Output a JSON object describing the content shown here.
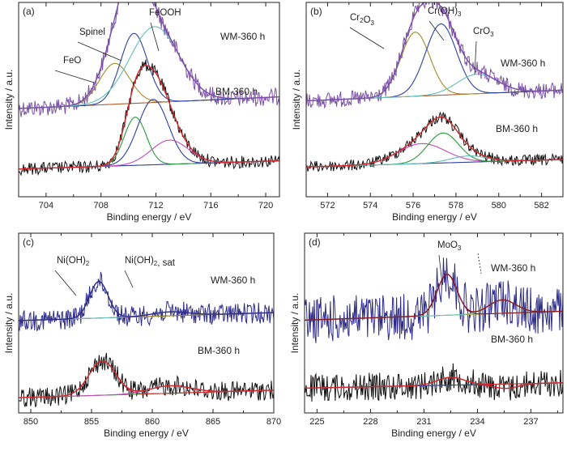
{
  "figure": {
    "panels": [
      {
        "letter": "(a)",
        "xlabel": "Binding energy  / eV",
        "ylabel": "Intensity  / a.u.",
        "xlim": [
          702,
          721
        ],
        "xticks": [
          "704",
          "708",
          "712",
          "716",
          "720"
        ],
        "xtick_values": [
          704,
          708,
          712,
          716,
          720
        ],
        "spectra": [
          {
            "label": "WM-360 h",
            "data_color": "#7b4fa8",
            "baseline_color": "#b25a2a",
            "fit_color": "#7b4fa8",
            "peaks": [
              {
                "name": "FeO",
                "label": "FeO",
                "center": 709.0,
                "height": 0.42,
                "fwhm": 2.6,
                "color": "#9b8f2e"
              },
              {
                "name": "Spinel",
                "label": "Spinel",
                "center": 710.4,
                "height": 0.72,
                "fwhm": 2.3,
                "color": "#2d3fa6"
              },
              {
                "name": "FeOOH",
                "label": "FeOOH",
                "center": 711.9,
                "height": 0.78,
                "fwhm": 4.2,
                "color": "#62c0b8"
              }
            ]
          },
          {
            "label": "BM-360 h",
            "data_color": "#111111",
            "baseline_color": "#2d3fa6",
            "fit_color": "#d6262c",
            "peaks": [
              {
                "name": "Fe2p-1",
                "label": "",
                "center": 710.5,
                "height": 0.7,
                "fwhm": 1.9,
                "color": "#2a9a3a"
              },
              {
                "name": "Fe2p-2",
                "label": "",
                "center": 711.8,
                "height": 0.95,
                "fwhm": 2.6,
                "color": "#2d3fa6"
              },
              {
                "name": "Fe2p-3",
                "label": "",
                "center": 713.0,
                "height": 0.35,
                "fwhm": 3.2,
                "color": "#c24bb8"
              }
            ]
          }
        ]
      },
      {
        "letter": "(b)",
        "xlabel": "Binding energy  / eV",
        "ylabel": "Intensity  / a.u.",
        "xlim": [
          571,
          583
        ],
        "xticks": [
          "572",
          "574",
          "576",
          "578",
          "580",
          "582"
        ],
        "xtick_values": [
          572,
          574,
          576,
          578,
          580,
          582
        ],
        "spectra": [
          {
            "label": "WM-360 h",
            "data_color": "#7b4fa8",
            "baseline_color": "#b25a2a",
            "fit_color": "#7b4fa8",
            "peaks": [
              {
                "name": "Cr2O3",
                "label": "Cr2O3",
                "center": 576.1,
                "height": 0.72,
                "fwhm": 1.6,
                "color": "#9b8f2e"
              },
              {
                "name": "Cr(OH)3",
                "label": "Cr(OH)3",
                "center": 577.3,
                "height": 0.8,
                "fwhm": 1.7,
                "color": "#2d3fa6"
              },
              {
                "name": "CrO3",
                "label": "CrO3",
                "center": 579.0,
                "height": 0.22,
                "fwhm": 2.2,
                "color": "#62c0b8"
              }
            ]
          },
          {
            "label": "BM-360 h",
            "data_color": "#111111",
            "baseline_color": "#2d3fa6",
            "fit_color": "#d6262c",
            "peaks": [
              {
                "name": "Cr2p-1",
                "label": "",
                "center": 576.4,
                "height": 0.32,
                "fwhm": 2.6,
                "color": "#c24bb8"
              },
              {
                "name": "Cr2p-2",
                "label": "",
                "center": 577.4,
                "height": 0.48,
                "fwhm": 1.7,
                "color": "#2a9a3a"
              },
              {
                "name": "Cr2p-3",
                "label": "",
                "center": 578.6,
                "height": 0.1,
                "fwhm": 2.0,
                "color": "#62c0b8"
              }
            ]
          }
        ]
      },
      {
        "letter": "(c)",
        "xlabel": "Binding energy  / eV",
        "ylabel": "Intensity  / a.u.",
        "xlim": [
          849,
          870
        ],
        "xticks": [
          "850",
          "855",
          "860",
          "865",
          "870"
        ],
        "xtick_values": [
          850,
          855,
          860,
          865,
          870
        ],
        "spectra": [
          {
            "label": "WM-360 h",
            "data_color": "#2d2a8a",
            "baseline_color": "#8a1a1a",
            "fit_color": "#2d2a8a",
            "peaks": [
              {
                "name": "Ni(OH)2",
                "label": "Ni(OH)2",
                "center": 855.6,
                "height": 0.55,
                "fwhm": 1.8,
                "color": "#9b8f2e"
              },
              {
                "name": "Ni(OH)2-sat",
                "label": "Ni(OH)2, sat",
                "center": 861.5,
                "height": 0.06,
                "fwhm": 3.5,
                "color": "#62c0b8"
              }
            ]
          },
          {
            "label": "BM-360 h",
            "data_color": "#111111",
            "baseline_color": "#2a9a3a",
            "fit_color": "#d6262c",
            "peaks": [
              {
                "name": "Ni2p-1",
                "label": "",
                "center": 855.9,
                "height": 0.55,
                "fwhm": 2.6,
                "color": "#d6262c"
              },
              {
                "name": "Ni2p-2",
                "label": "",
                "center": 861.5,
                "height": 0.12,
                "fwhm": 4.0,
                "color": "#c24bb8"
              }
            ]
          }
        ]
      },
      {
        "letter": "(d)",
        "xlabel": "Binding energy  / eV",
        "ylabel": "Intensity  / a.u.",
        "xlim": [
          224.3,
          238.8
        ],
        "xticks": [
          "225",
          "228",
          "231",
          "234",
          "237"
        ],
        "xtick_values": [
          225,
          228,
          231,
          234,
          237
        ],
        "spectra": [
          {
            "label": "WM-360 h",
            "data_color": "#2d2a8a",
            "baseline_color": "#b8a23a",
            "fit_color": "#8a1a1a",
            "peaks": [
              {
                "name": "MoO3",
                "label": "MoO3",
                "center": 232.3,
                "height": 0.55,
                "fwhm": 1.3,
                "color": "#8a1a1a"
              },
              {
                "name": "MoO3-b",
                "label": "",
                "center": 235.4,
                "height": 0.18,
                "fwhm": 1.8,
                "color": "#62c0b8"
              }
            ]
          },
          {
            "label": "BM-360 h",
            "data_color": "#111111",
            "baseline_color": "#2a9a3a",
            "fit_color": "#d6262c",
            "peaks": [
              {
                "name": "Mo3d-1",
                "label": "",
                "center": 232.5,
                "height": 0.18,
                "fwhm": 1.8,
                "color": "#d6262c"
              },
              {
                "name": "Mo3d-2",
                "label": "",
                "center": 235.6,
                "height": -0.1,
                "fwhm": 1.6,
                "color": "#2d3fa6"
              }
            ]
          }
        ]
      }
    ]
  },
  "chart_data": [
    {
      "type": "line",
      "panel": "(a)",
      "xlabel": "Binding energy  / eV",
      "ylabel": "Intensity  / a.u.",
      "xlim": [
        702,
        721
      ],
      "series": [
        {
          "name": "WM-360 h",
          "components": [
            "FeO",
            "Spinel",
            "FeOOH"
          ],
          "peak_centers": [
            709.0,
            710.4,
            711.9
          ]
        },
        {
          "name": "BM-360 h",
          "components": [
            "",
            "",
            ""
          ],
          "peak_centers": [
            710.5,
            711.8,
            713.0
          ]
        }
      ],
      "annotations": [
        "FeO",
        "Spinel",
        "FeOOH",
        "WM-360 h",
        "BM-360 h"
      ]
    },
    {
      "type": "line",
      "panel": "(b)",
      "xlabel": "Binding energy  / eV",
      "ylabel": "Intensity  / a.u.",
      "xlim": [
        571,
        583
      ],
      "series": [
        {
          "name": "WM-360 h",
          "components": [
            "Cr2O3",
            "Cr(OH)3",
            "CrO3"
          ],
          "peak_centers": [
            576.1,
            577.3,
            579.0
          ]
        },
        {
          "name": "BM-360 h",
          "components": [
            "",
            "",
            ""
          ],
          "peak_centers": [
            576.4,
            577.4,
            578.6
          ]
        }
      ],
      "annotations": [
        "Cr2O3",
        "Cr(OH)3",
        "CrO3",
        "WM-360 h",
        "BM-360 h"
      ]
    },
    {
      "type": "line",
      "panel": "(c)",
      "xlabel": "Binding energy  / eV",
      "ylabel": "Intensity  / a.u.",
      "xlim": [
        849,
        870
      ],
      "series": [
        {
          "name": "WM-360 h",
          "components": [
            "Ni(OH)2",
            "Ni(OH)2, sat"
          ],
          "peak_centers": [
            855.6,
            861.5
          ]
        },
        {
          "name": "BM-360 h",
          "components": [
            "",
            ""
          ],
          "peak_centers": [
            855.9,
            861.5
          ]
        }
      ],
      "annotations": [
        "Ni(OH)2",
        "Ni(OH)2, sat",
        "WM-360 h",
        "BM-360 h"
      ]
    },
    {
      "type": "line",
      "panel": "(d)",
      "xlabel": "Binding energy  / eV",
      "ylabel": "Intensity  / a.u.",
      "xlim": [
        224.3,
        238.8
      ],
      "series": [
        {
          "name": "WM-360 h",
          "components": [
            "MoO3",
            ""
          ],
          "peak_centers": [
            232.3,
            235.4
          ]
        },
        {
          "name": "BM-360 h",
          "components": [
            "",
            ""
          ],
          "peak_centers": [
            232.5,
            235.6
          ]
        }
      ],
      "annotations": [
        "MoO3",
        "WM-360 h",
        "BM-360 h"
      ]
    }
  ]
}
